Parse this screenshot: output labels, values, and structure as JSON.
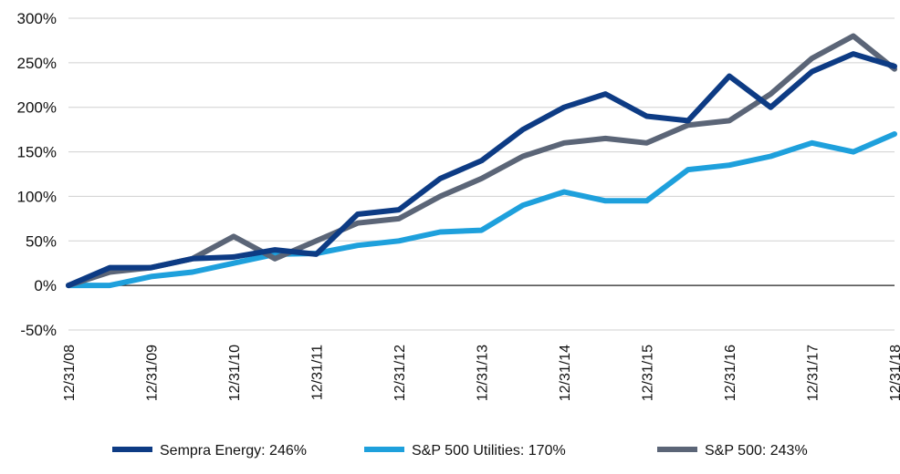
{
  "chart_data": {
    "type": "line",
    "title": "",
    "xlabel": "",
    "ylabel": "",
    "ylim": [
      -50,
      300
    ],
    "y_ticks": [
      300,
      250,
      200,
      150,
      100,
      50,
      0,
      -50
    ],
    "y_tick_labels": [
      "300%",
      "250%",
      "200%",
      "150%",
      "100%",
      "50%",
      "0%",
      "-50%"
    ],
    "x_tick_labels": [
      "12/31/08",
      "12/31/09",
      "12/31/10",
      "12/31/11",
      "12/31/12",
      "12/31/13",
      "12/31/14",
      "12/31/15",
      "12/31/16",
      "12/31/17",
      "12/31/18"
    ],
    "x": [
      0,
      0.5,
      1,
      1.5,
      2,
      2.5,
      3,
      3.5,
      4,
      4.5,
      5,
      5.5,
      6,
      6.5,
      7,
      7.5,
      8,
      8.5,
      9,
      9.5,
      10
    ],
    "grid": true,
    "legend_position": "bottom",
    "series": [
      {
        "name": "Sempra Energy: 246%",
        "color": "#0d3b84",
        "values": [
          0,
          20,
          20,
          30,
          32,
          40,
          35,
          80,
          85,
          120,
          140,
          175,
          200,
          215,
          190,
          185,
          235,
          200,
          240,
          260,
          246
        ]
      },
      {
        "name": "S&P 500 Utilities: 170%",
        "color": "#1ea0dc",
        "values": [
          0,
          0,
          10,
          15,
          25,
          35,
          36,
          45,
          50,
          60,
          62,
          90,
          105,
          95,
          95,
          130,
          135,
          145,
          160,
          150,
          170
        ]
      },
      {
        "name": "S&P 500: 243%",
        "color": "#5b6577",
        "values": [
          0,
          15,
          20,
          30,
          55,
          30,
          50,
          70,
          75,
          100,
          120,
          145,
          160,
          165,
          160,
          180,
          185,
          215,
          255,
          280,
          243
        ]
      }
    ]
  }
}
